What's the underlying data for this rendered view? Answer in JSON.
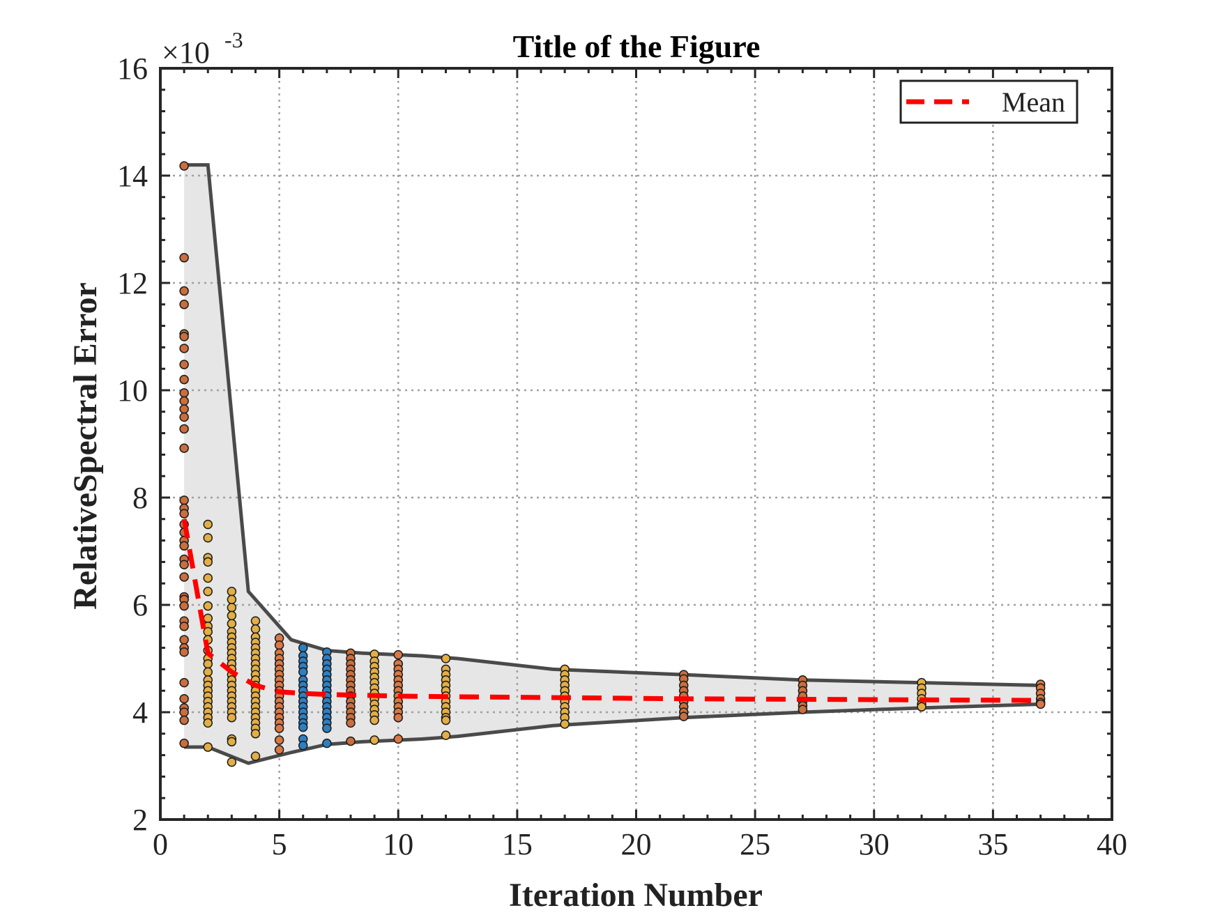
{
  "chart_data": {
    "type": "scatter",
    "title": "Title of the Figure",
    "xlabel": "Iteration Number",
    "ylabel": "RelativeSpectral Error",
    "xlim": [
      0,
      40
    ],
    "ylim": [
      2,
      16
    ],
    "y_exponent_label": "×10",
    "y_exponent_power": "-3",
    "xticks": [
      "0",
      "5",
      "10",
      "15",
      "20",
      "25",
      "30",
      "35",
      "40"
    ],
    "yticks": [
      "2",
      "4",
      "6",
      "8",
      "10",
      "12",
      "14",
      "16"
    ],
    "grid": true,
    "legend": {
      "location": "top-right",
      "entries": [
        "Mean"
      ]
    },
    "colors": {
      "mean": "#ff0000",
      "envelope_line": "#4a4a4a",
      "envelope_fill": "#e6e6e6",
      "points": [
        "#2e7fc1",
        "#e3ae45",
        "#d97845",
        "#c96e3e"
      ]
    },
    "series": [
      {
        "name": "Mean",
        "style": "dashed",
        "x": [
          1,
          2,
          3,
          4,
          5,
          6,
          7,
          8,
          9,
          10,
          12,
          17,
          22,
          27,
          32,
          37
        ],
        "y": [
          7.6,
          5.1,
          4.75,
          4.5,
          4.38,
          4.35,
          4.33,
          4.32,
          4.31,
          4.3,
          4.29,
          4.27,
          4.25,
          4.24,
          4.23,
          4.22
        ]
      }
    ],
    "envelope": {
      "x": [
        1,
        2,
        3.7,
        5.5,
        7,
        8.5,
        11,
        12.5,
        16.5,
        22,
        27,
        32,
        37
      ],
      "upper": [
        14.2,
        14.2,
        6.25,
        5.35,
        5.15,
        5.1,
        5.05,
        5.0,
        4.8,
        4.7,
        4.6,
        4.55,
        4.5
      ],
      "lower": [
        3.35,
        3.35,
        3.05,
        3.25,
        3.4,
        3.45,
        3.5,
        3.55,
        3.75,
        3.9,
        4.0,
        4.08,
        4.15
      ]
    },
    "scatter_points": [
      {
        "x": 1,
        "y": [
          14.18,
          12.47,
          11.85,
          11.6,
          11.05,
          11.0,
          10.78,
          10.48,
          10.2,
          9.95,
          9.8,
          9.65,
          9.5,
          9.28,
          8.92,
          7.95,
          7.8,
          7.7,
          7.5,
          7.35,
          7.2,
          7.1,
          6.85,
          6.75,
          6.52,
          6.15,
          6.1,
          5.98,
          5.7,
          5.6,
          5.35,
          5.2,
          5.12,
          4.55,
          4.25,
          4.08,
          4.0,
          3.85,
          3.42
        ]
      },
      {
        "x": 2,
        "y": [
          7.5,
          7.25,
          6.88,
          6.8,
          6.5,
          6.25,
          5.98,
          5.75,
          5.6,
          5.5,
          5.35,
          5.15,
          5.0,
          4.9,
          4.75,
          4.6,
          4.5,
          4.4,
          4.3,
          4.2,
          4.1,
          4.0,
          3.9,
          3.8,
          3.35
        ]
      },
      {
        "x": 3,
        "y": [
          6.25,
          6.1,
          5.95,
          5.8,
          5.65,
          5.5,
          5.4,
          5.3,
          5.2,
          5.1,
          5.0,
          4.9,
          4.8,
          4.7,
          4.6,
          4.5,
          4.4,
          4.3,
          4.2,
          4.1,
          4.0,
          3.9,
          3.5,
          3.45,
          3.07
        ]
      },
      {
        "x": 4,
        "y": [
          5.7,
          5.55,
          5.4,
          5.3,
          5.2,
          5.1,
          5.0,
          4.9,
          4.8,
          4.7,
          4.6,
          4.5,
          4.4,
          4.3,
          4.2,
          4.1,
          4.0,
          3.9,
          3.8,
          3.7,
          3.6,
          3.18
        ]
      },
      {
        "x": 5,
        "y": [
          5.38,
          5.25,
          5.1,
          5.0,
          4.9,
          4.8,
          4.7,
          4.6,
          4.5,
          4.4,
          4.3,
          4.2,
          4.1,
          4.0,
          3.9,
          3.8,
          3.7,
          3.48,
          3.3
        ]
      },
      {
        "x": 6,
        "y": [
          5.2,
          5.05,
          4.95,
          4.85,
          4.75,
          4.6,
          4.5,
          4.4,
          4.3,
          4.2,
          4.1,
          4.0,
          3.9,
          3.8,
          3.72,
          3.5,
          3.38
        ]
      },
      {
        "x": 7,
        "y": [
          5.12,
          5.0,
          4.9,
          4.8,
          4.7,
          4.6,
          4.5,
          4.4,
          4.3,
          4.2,
          4.1,
          4.0,
          3.9,
          3.8,
          3.7,
          3.42
        ]
      },
      {
        "x": 8,
        "y": [
          5.1,
          5.0,
          4.9,
          4.8,
          4.7,
          4.6,
          4.5,
          4.4,
          4.3,
          4.2,
          4.1,
          4.0,
          3.9,
          3.8,
          3.46
        ]
      },
      {
        "x": 9,
        "y": [
          5.08,
          4.95,
          4.85,
          4.75,
          4.65,
          4.55,
          4.45,
          4.35,
          4.25,
          4.15,
          4.05,
          3.95,
          3.85,
          3.48
        ]
      },
      {
        "x": 10,
        "y": [
          5.07,
          4.9,
          4.8,
          4.7,
          4.6,
          4.5,
          4.4,
          4.3,
          4.2,
          4.1,
          4.0,
          3.9,
          3.5
        ]
      },
      {
        "x": 12,
        "y": [
          5.0,
          4.8,
          4.7,
          4.6,
          4.5,
          4.4,
          4.3,
          4.2,
          4.1,
          4.0,
          3.9,
          3.85,
          3.57
        ]
      },
      {
        "x": 17,
        "y": [
          4.8,
          4.7,
          4.6,
          4.5,
          4.4,
          4.3,
          4.2,
          4.1,
          4.0,
          3.9,
          3.78
        ]
      },
      {
        "x": 22,
        "y": [
          4.7,
          4.62,
          4.5,
          4.4,
          4.3,
          4.2,
          4.1,
          4.0,
          3.92
        ]
      },
      {
        "x": 27,
        "y": [
          4.6,
          4.5,
          4.4,
          4.3,
          4.2,
          4.12,
          4.05
        ]
      },
      {
        "x": 32,
        "y": [
          4.55,
          4.45,
          4.35,
          4.25,
          4.15,
          4.1
        ]
      },
      {
        "x": 37,
        "y": [
          4.52,
          4.45,
          4.35,
          4.25,
          4.18,
          4.15
        ]
      }
    ]
  }
}
